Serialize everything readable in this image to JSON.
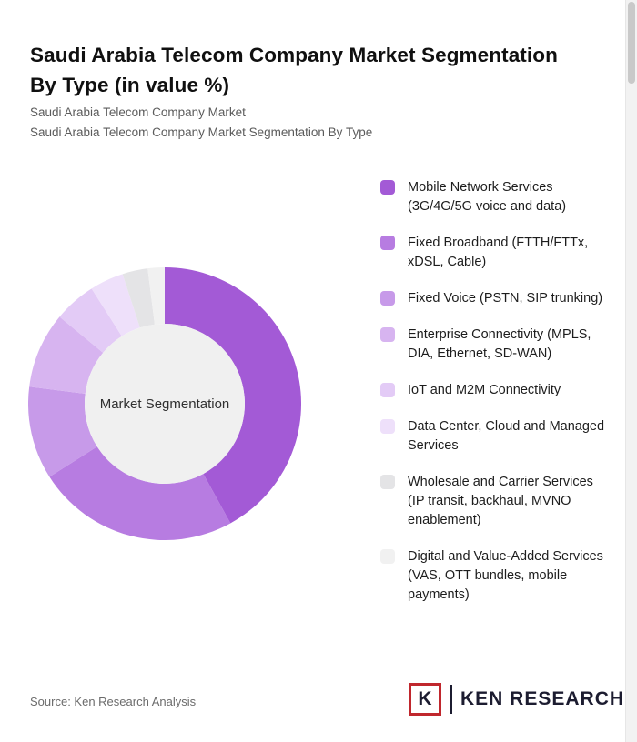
{
  "page": {
    "title": "Saudi Arabia Telecom Company Market Segmentation By Type (in value %)",
    "title_lines": [
      "Saudi Arabia Telecom Company Market Segmentation",
      "By Type (in value %)"
    ],
    "subtitle1": "Saudi Arabia Telecom Company Market",
    "subtitle2": "Saudi Arabia Telecom Company Market Segmentation By Type",
    "source": "Source: Ken Research Analysis",
    "logo": {
      "mark": "K",
      "text": "KEN RESEARCH"
    }
  },
  "chart_data": {
    "type": "pie",
    "donut": true,
    "title": "Saudi Arabia Telecom Company Market Segmentation By Type (in value %)",
    "center_label": "Market Segmentation",
    "legend_position": "right",
    "categories": [
      "Mobile Network Services (3G/4G/5G voice and data)",
      "Fixed Broadband (FTTH/FTTx, xDSL, Cable)",
      "Fixed Voice (PSTN, SIP trunking)",
      "Enterprise Connectivity (MPLS, DIA, Ethernet, SD-WAN)",
      "IoT and M2M Connectivity",
      "Data Center, Cloud and Managed Services",
      "Wholesale and Carrier Services (IP transit, backhaul, MVNO enablement)",
      "Digital and Value-Added Services (VAS, OTT bundles, mobile payments)"
    ],
    "values": [
      42,
      24,
      11,
      9,
      5,
      4,
      3,
      2
    ],
    "colors": [
      "#a35ad6",
      "#b77ce1",
      "#c79ae9",
      "#d7b4f0",
      "#e3cbf6",
      "#eee0fa",
      "#e4e4e6",
      "#f1f1f1"
    ],
    "center_fill": "#f0f0f0"
  }
}
